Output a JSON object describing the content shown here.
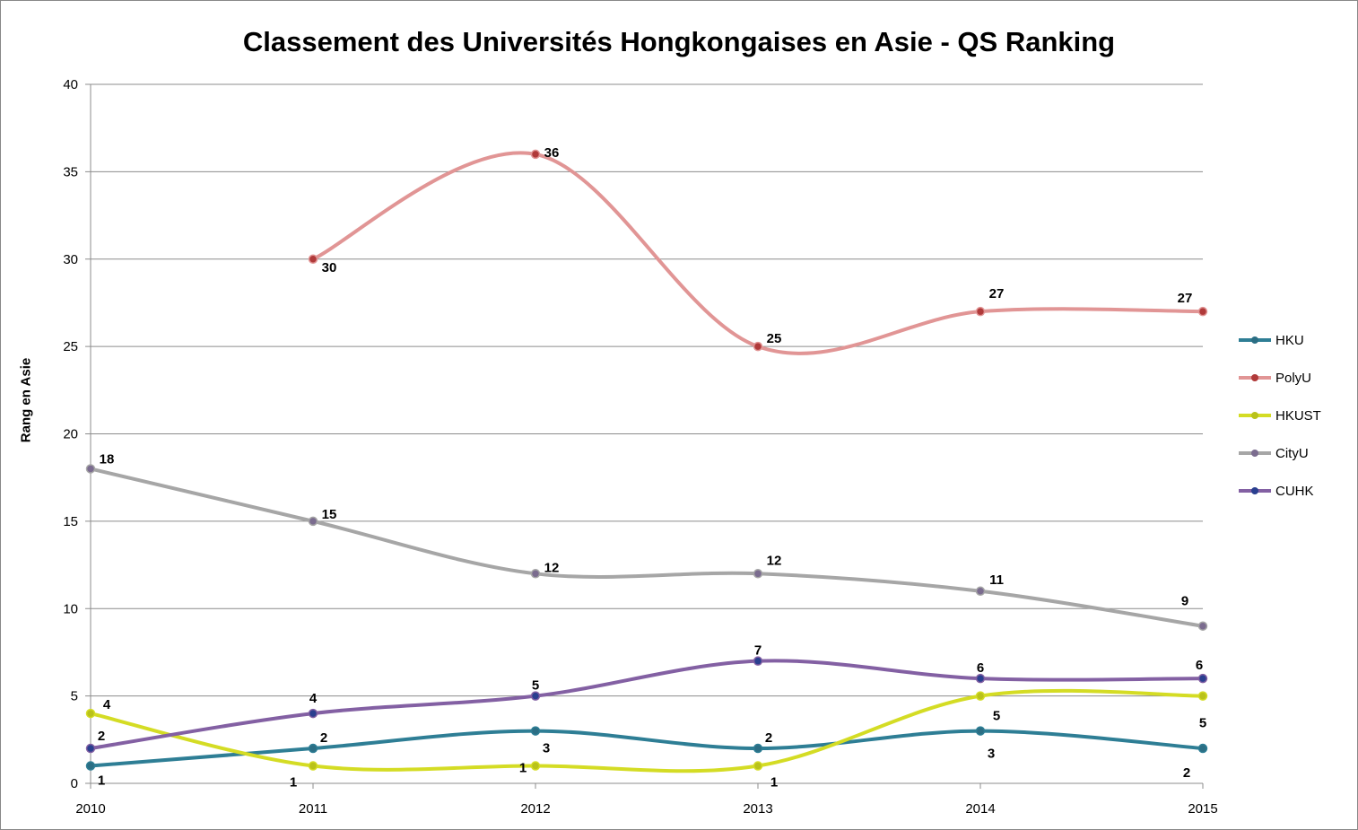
{
  "chart_data": {
    "type": "line",
    "title": "Classement des Universités Hongkongaises en Asie - QS Ranking",
    "xlabel": "",
    "ylabel": "Rang en Asie",
    "x": [
      "2010",
      "2011",
      "2012",
      "2013",
      "2014",
      "2015"
    ],
    "ylim": [
      0,
      40
    ],
    "y_ticks": [
      "0",
      "5",
      "10",
      "15",
      "20",
      "25",
      "30",
      "35",
      "40"
    ],
    "grid": true,
    "legend_position": "right",
    "smooth": true,
    "series": [
      {
        "name": "HKU",
        "color": "#2e7e95",
        "values": [
          1,
          2,
          3,
          2,
          3,
          2
        ]
      },
      {
        "name": "PolyU",
        "color": "#e19595",
        "values": [
          null,
          30,
          36,
          25,
          27,
          27
        ]
      },
      {
        "name": "HKUST",
        "color": "#d4dc24",
        "values": [
          4,
          1,
          1,
          1,
          5,
          5
        ]
      },
      {
        "name": "CityU",
        "color": "#a6a6a6",
        "values": [
          18,
          15,
          12,
          12,
          11,
          9
        ]
      },
      {
        "name": "CUHK",
        "color": "#8360a3",
        "values": [
          2,
          4,
          5,
          7,
          6,
          6
        ]
      }
    ],
    "marker_colors": {
      "HKU": "#2b6e84",
      "PolyU": "#b03a3a",
      "HKUST": "#b9c21a",
      "CityU": "#7b6c8f",
      "CUHK": "#2a3f8f"
    }
  }
}
